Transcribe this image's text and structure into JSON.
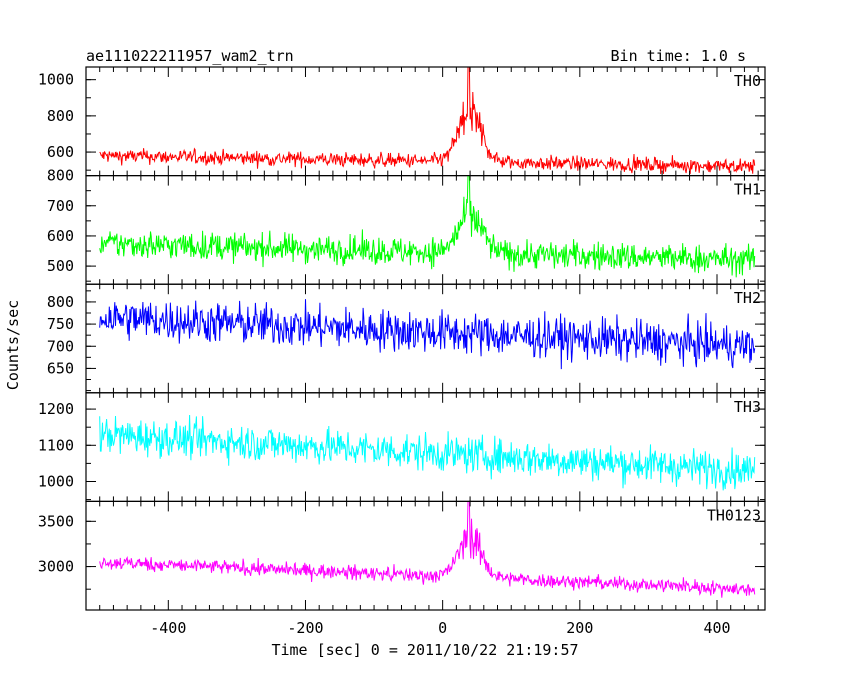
{
  "chart_data": {
    "type": "line",
    "title": "ae111022211957_wam2_trn",
    "subtitle": "Bin time: 1.0 s",
    "xlabel": "Time [sec] 0 = 2011/10/22 21:19:57",
    "ylabel": "Counts/sec",
    "xlim": [
      -520,
      470
    ],
    "x_ticks": [
      -400,
      -200,
      0,
      200,
      400
    ],
    "x_range": [
      -500,
      455
    ],
    "grid": false,
    "burst": {
      "center": 40,
      "width": 35
    },
    "panels": [
      {
        "name": "TH0",
        "color": "#ff0000",
        "ylim": [
          470,
          1070
        ],
        "y_ticks": [
          600,
          800,
          1000
        ],
        "baseline_start": 580,
        "baseline_end": 520,
        "noise": 38,
        "burst_peak": 1070
      },
      {
        "name": "TH1",
        "color": "#00ff00",
        "ylim": [
          440,
          800
        ],
        "y_ticks": [
          500,
          600,
          700,
          800
        ],
        "baseline_start": 575,
        "baseline_end": 520,
        "noise": 45,
        "burst_peak": 800
      },
      {
        "name": "TH2",
        "color": "#0000ff",
        "ylim": [
          595,
          840
        ],
        "y_ticks": [
          650,
          700,
          750,
          800
        ],
        "baseline_start": 765,
        "baseline_end": 700,
        "noise": 45,
        "burst_peak": 0
      },
      {
        "name": "TH3",
        "color": "#00ffff",
        "ylim": [
          945,
          1245
        ],
        "y_ticks": [
          1000,
          1100,
          1200
        ],
        "baseline_start": 1130,
        "baseline_end": 1030,
        "noise": 48,
        "burst_peak": 0
      },
      {
        "name": "TH0123",
        "color": "#ff00ff",
        "ylim": [
          2520,
          3720
        ],
        "y_ticks": [
          3000,
          3500
        ],
        "baseline_start": 3050,
        "baseline_end": 2750,
        "noise": 75,
        "burst_peak": 3720
      }
    ]
  }
}
